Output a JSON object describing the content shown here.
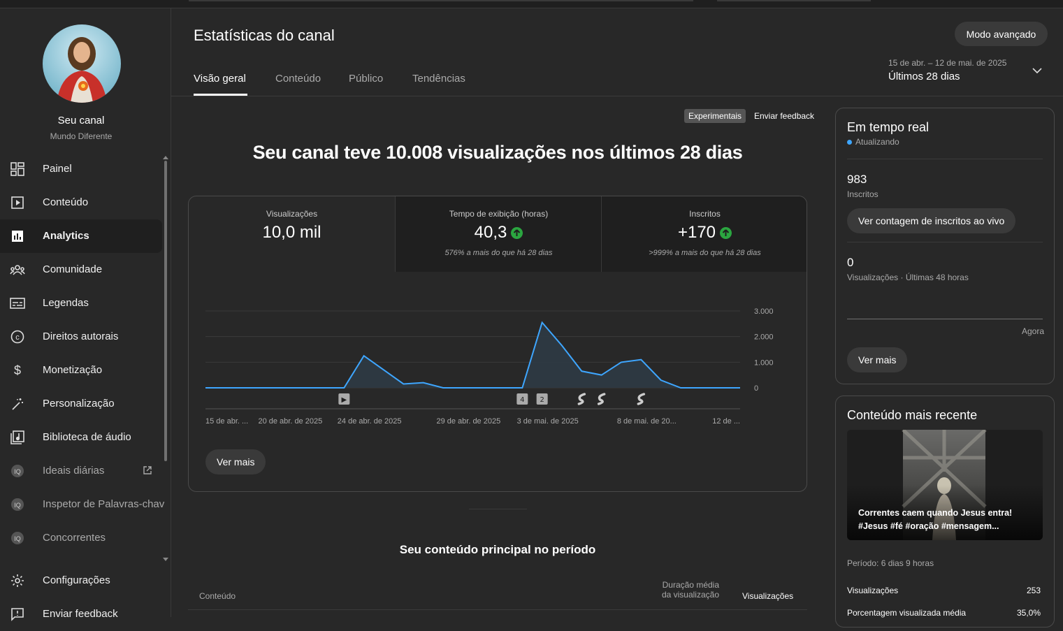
{
  "channel": {
    "name": "Seu canal",
    "subtitle": "Mundo Diferente"
  },
  "sidebar": {
    "items": [
      {
        "label": "Painel",
        "icon": "dashboard-icon"
      },
      {
        "label": "Conteúdo",
        "icon": "content-icon"
      },
      {
        "label": "Analytics",
        "icon": "analytics-icon",
        "active": true
      },
      {
        "label": "Comunidade",
        "icon": "community-icon"
      },
      {
        "label": "Legendas",
        "icon": "subtitles-icon"
      },
      {
        "label": "Direitos autorais",
        "icon": "copyright-icon"
      },
      {
        "label": "Monetização",
        "icon": "dollar-icon"
      },
      {
        "label": "Personalização",
        "icon": "magic-wand-icon"
      },
      {
        "label": "Biblioteca de áudio",
        "icon": "audio-library-icon"
      },
      {
        "label": "Ideais diárias",
        "icon": "vidiq-icon"
      },
      {
        "label": "Inspetor de Palavras-chav",
        "icon": "vidiq-icon"
      },
      {
        "label": "Concorrentes",
        "icon": "vidiq-icon"
      }
    ],
    "bottom": [
      {
        "label": "Configurações",
        "icon": "gear-icon"
      },
      {
        "label": "Enviar feedback",
        "icon": "feedback-icon"
      }
    ]
  },
  "header": {
    "title": "Estatísticas do canal",
    "advanced_button": "Modo avançado",
    "date_range": "15 de abr. – 12 de mai. de 2025",
    "date_label": "Últimos 28 dias",
    "tabs": [
      "Visão geral",
      "Conteúdo",
      "Público",
      "Tendências"
    ]
  },
  "main": {
    "experimental_badge": "Experimentais",
    "feedback_link": "Enviar feedback",
    "headline": "Seu canal teve 10.008 visualizações nos últimos 28 dias",
    "metrics": [
      {
        "label": "Visualizações",
        "value": "10,0 mil",
        "sub": ""
      },
      {
        "label": "Tempo de exibição (horas)",
        "value": "40,3",
        "sub": "576% a mais do que há 28 dias"
      },
      {
        "label": "Inscritos",
        "value": "+170",
        "sub": ">999% a mais do que há 28 dias"
      }
    ],
    "see_more": "Ver mais",
    "top_content_title": "Seu conteúdo principal no período",
    "table_headers": {
      "content": "Conteúdo",
      "avg_duration_1": "Duração média",
      "avg_duration_2": "da visualização",
      "views": "Visualizações"
    }
  },
  "chart_data": {
    "type": "area",
    "series": [
      {
        "name": "Visualizações",
        "values": [
          0,
          0,
          0,
          0,
          0,
          0,
          0,
          0,
          1250,
          700,
          150,
          200,
          0,
          0,
          0,
          0,
          0,
          2550,
          1650,
          650,
          500,
          1000,
          1100,
          300,
          0,
          0,
          0,
          0
        ]
      }
    ],
    "x_tick_labels": [
      "15 de abr. ...",
      "20 de abr. de 2025",
      "24 de abr. de 2025",
      "29 de abr. de 2025",
      "3 de mai. de 2025",
      "8 de mai. de 20...",
      "12 de ..."
    ],
    "y_tick_labels": [
      "3.000",
      "2.000",
      "1.000",
      "0"
    ],
    "ylim": [
      0,
      3000
    ],
    "markers": [
      "▶",
      "4",
      "2",
      "S",
      "S",
      "S"
    ],
    "colors": {
      "line": "#3ea6ff",
      "fill": "#2d3a44"
    }
  },
  "realtime": {
    "title": "Em tempo real",
    "status": "Atualizando",
    "subscribers_value": "983",
    "subscribers_label": "Inscritos",
    "live_count_button": "Ver contagem de inscritos ao vivo",
    "views_value": "0",
    "views_label": "Visualizações · Últimas 48 horas",
    "axis_now": "Agora",
    "see_more": "Ver mais"
  },
  "recent": {
    "title": "Conteúdo mais recente",
    "video_title": "Correntes caem quando Jesus entra! #Jesus #fé #oração #mensagem...",
    "period": "Período: 6 dias 9 horas",
    "rows": [
      {
        "label": "Visualizações",
        "value": "253"
      },
      {
        "label": "Porcentagem visualizada média",
        "value": "35,0%"
      }
    ]
  }
}
